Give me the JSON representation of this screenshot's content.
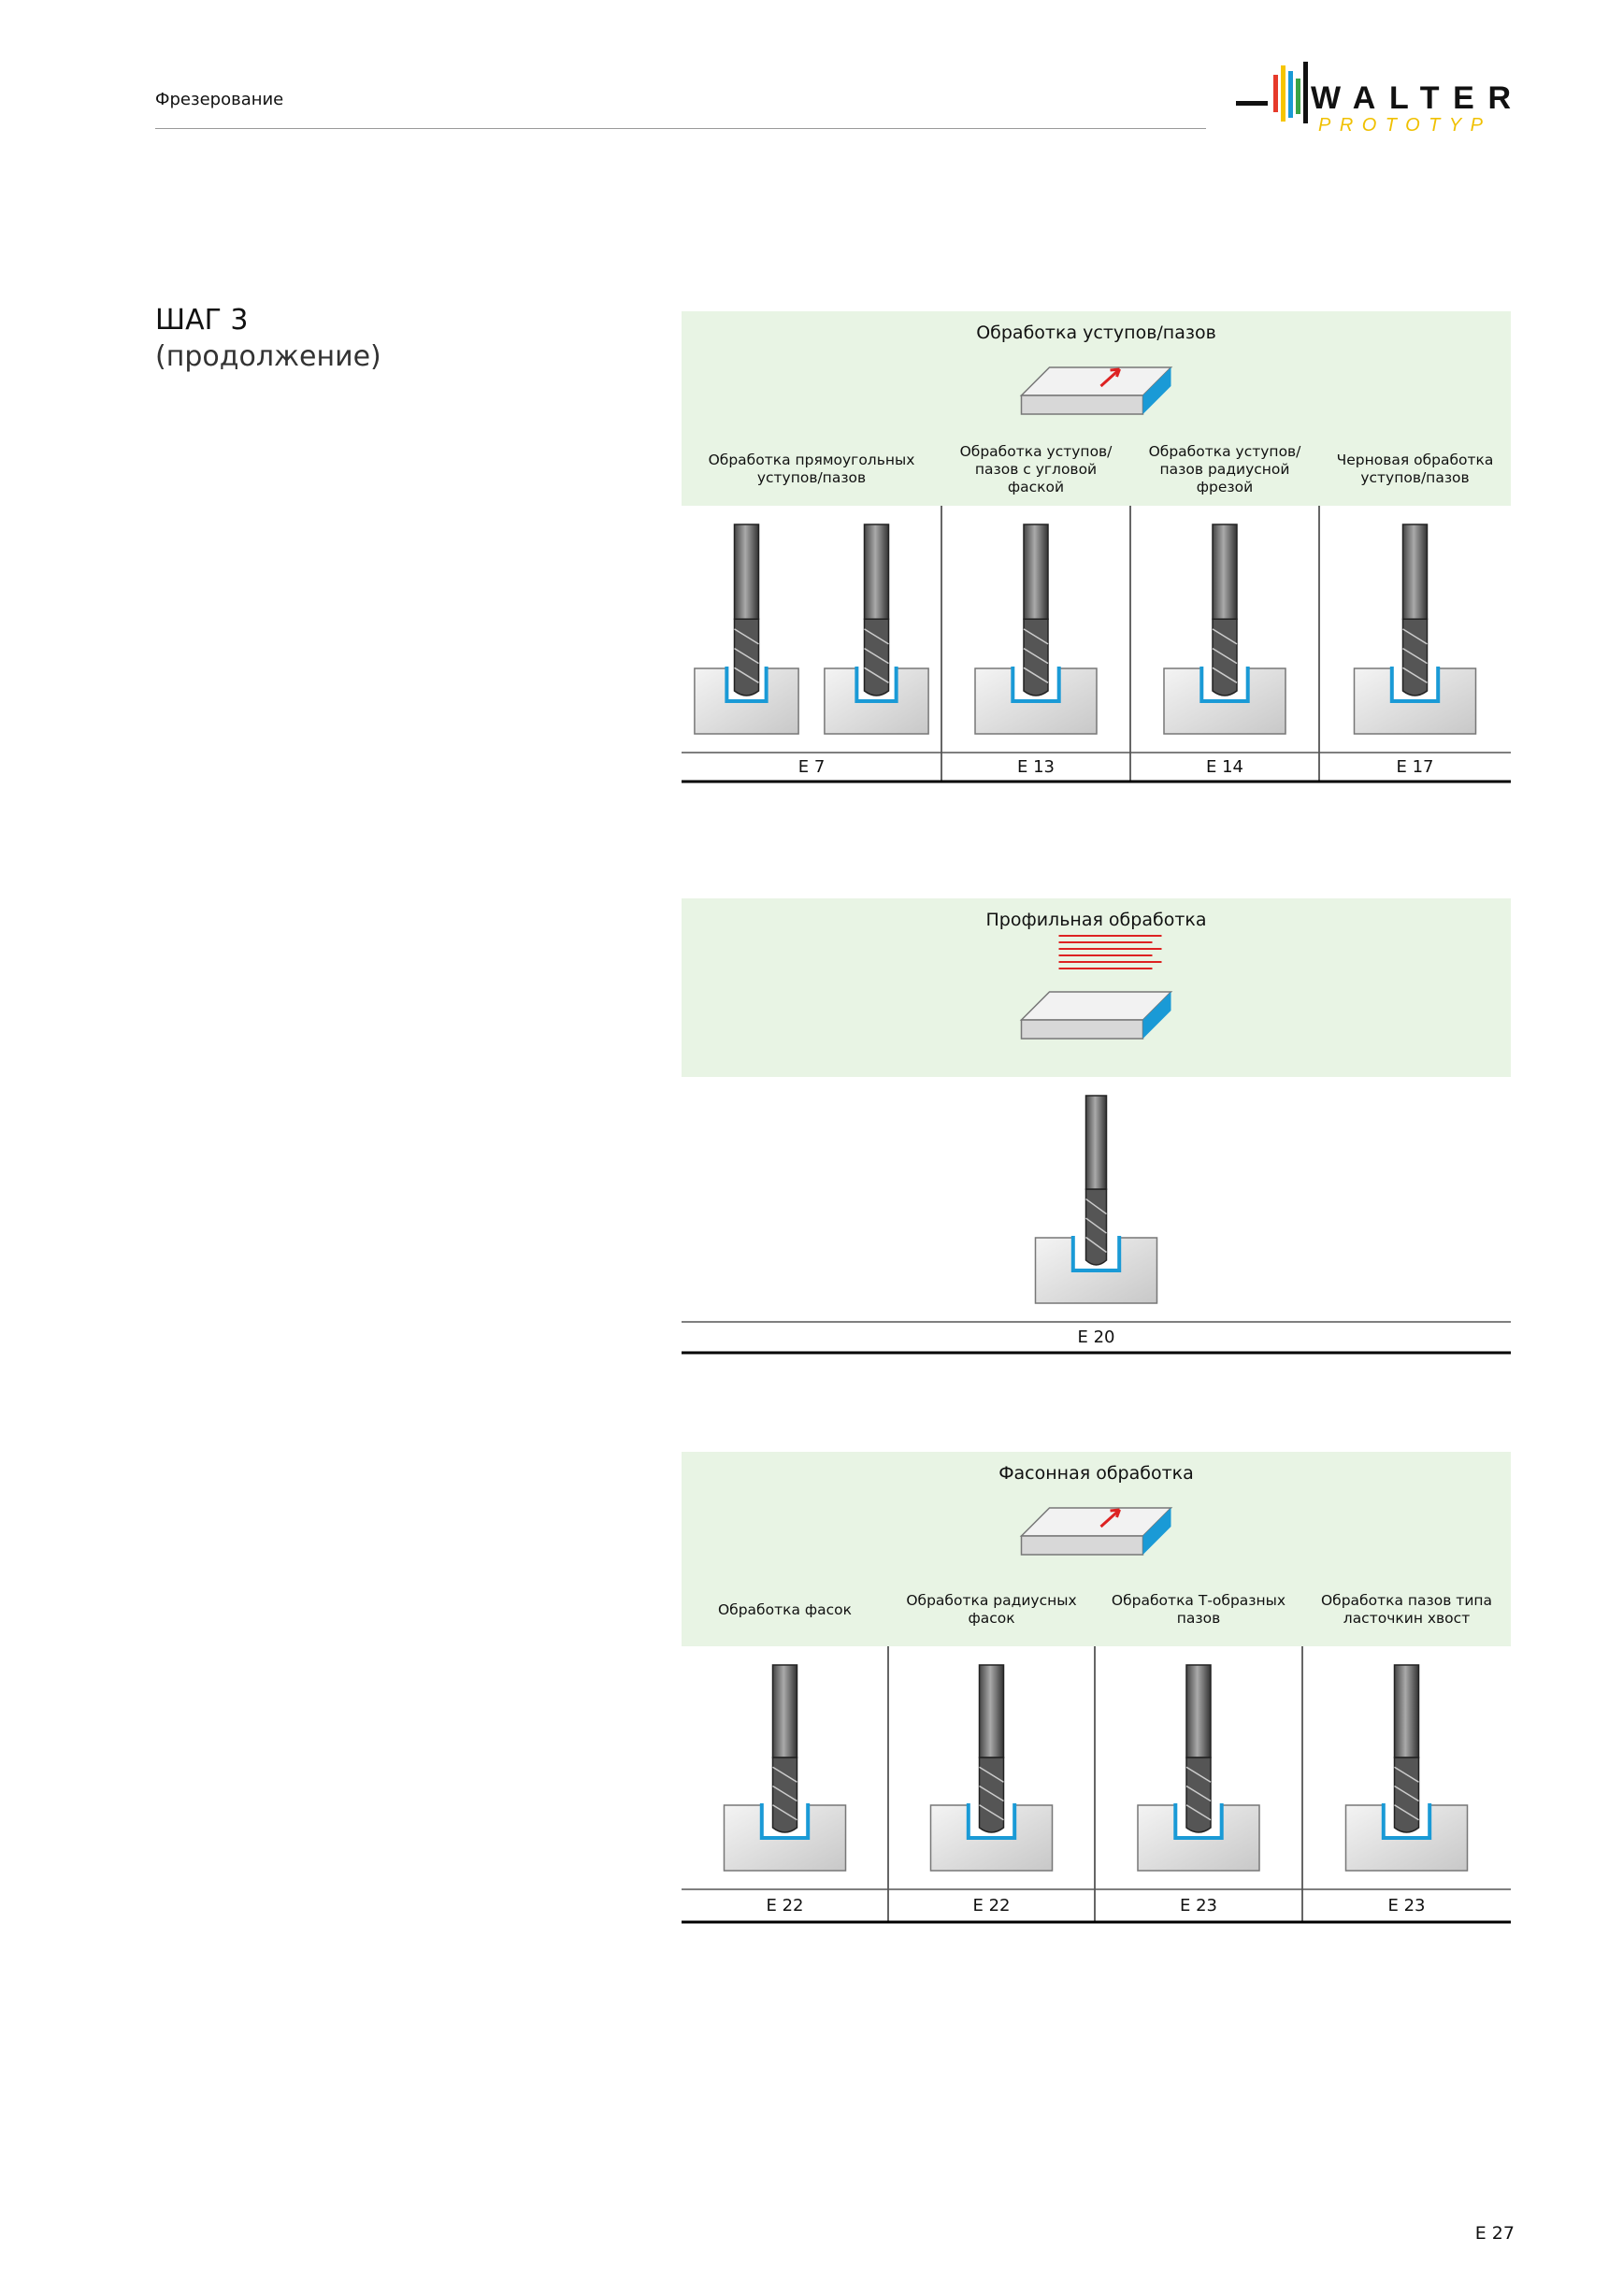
{
  "header": {
    "title": "Фрезерование",
    "logo": {
      "brand": "WALTER",
      "sub": "PROTOTYP"
    }
  },
  "step": {
    "title": "ШАГ 3",
    "subtitle": "(продолжение)"
  },
  "sections": [
    {
      "title": "Обработка уступов/пазов",
      "columns": [
        {
          "label": "Обработка прямоугольных уступов/пазов",
          "code": "E 7"
        },
        {
          "label": "Обработка уступов/ пазов с угловой фаской",
          "code": "E 13"
        },
        {
          "label": "Обработка уступов/ пазов радиусной фрезой",
          "code": "E 14"
        },
        {
          "label": "Черновая обработка уступов/пазов",
          "code": "E 17"
        }
      ]
    },
    {
      "title": "Профильная обработка",
      "columns": [
        {
          "code": "E 20"
        }
      ]
    },
    {
      "title": "Фасонная обработка",
      "columns": [
        {
          "label": "Обработка фасок",
          "code": "E 22"
        },
        {
          "label": "Обработка радиусных фасок",
          "code": "E 22"
        },
        {
          "label": "Обработка Т-образных пазов",
          "code": "E 23"
        },
        {
          "label": "Обработка пазов типа ласточкин хвост",
          "code": "E 23"
        }
      ]
    }
  ],
  "page_number": "E 27"
}
